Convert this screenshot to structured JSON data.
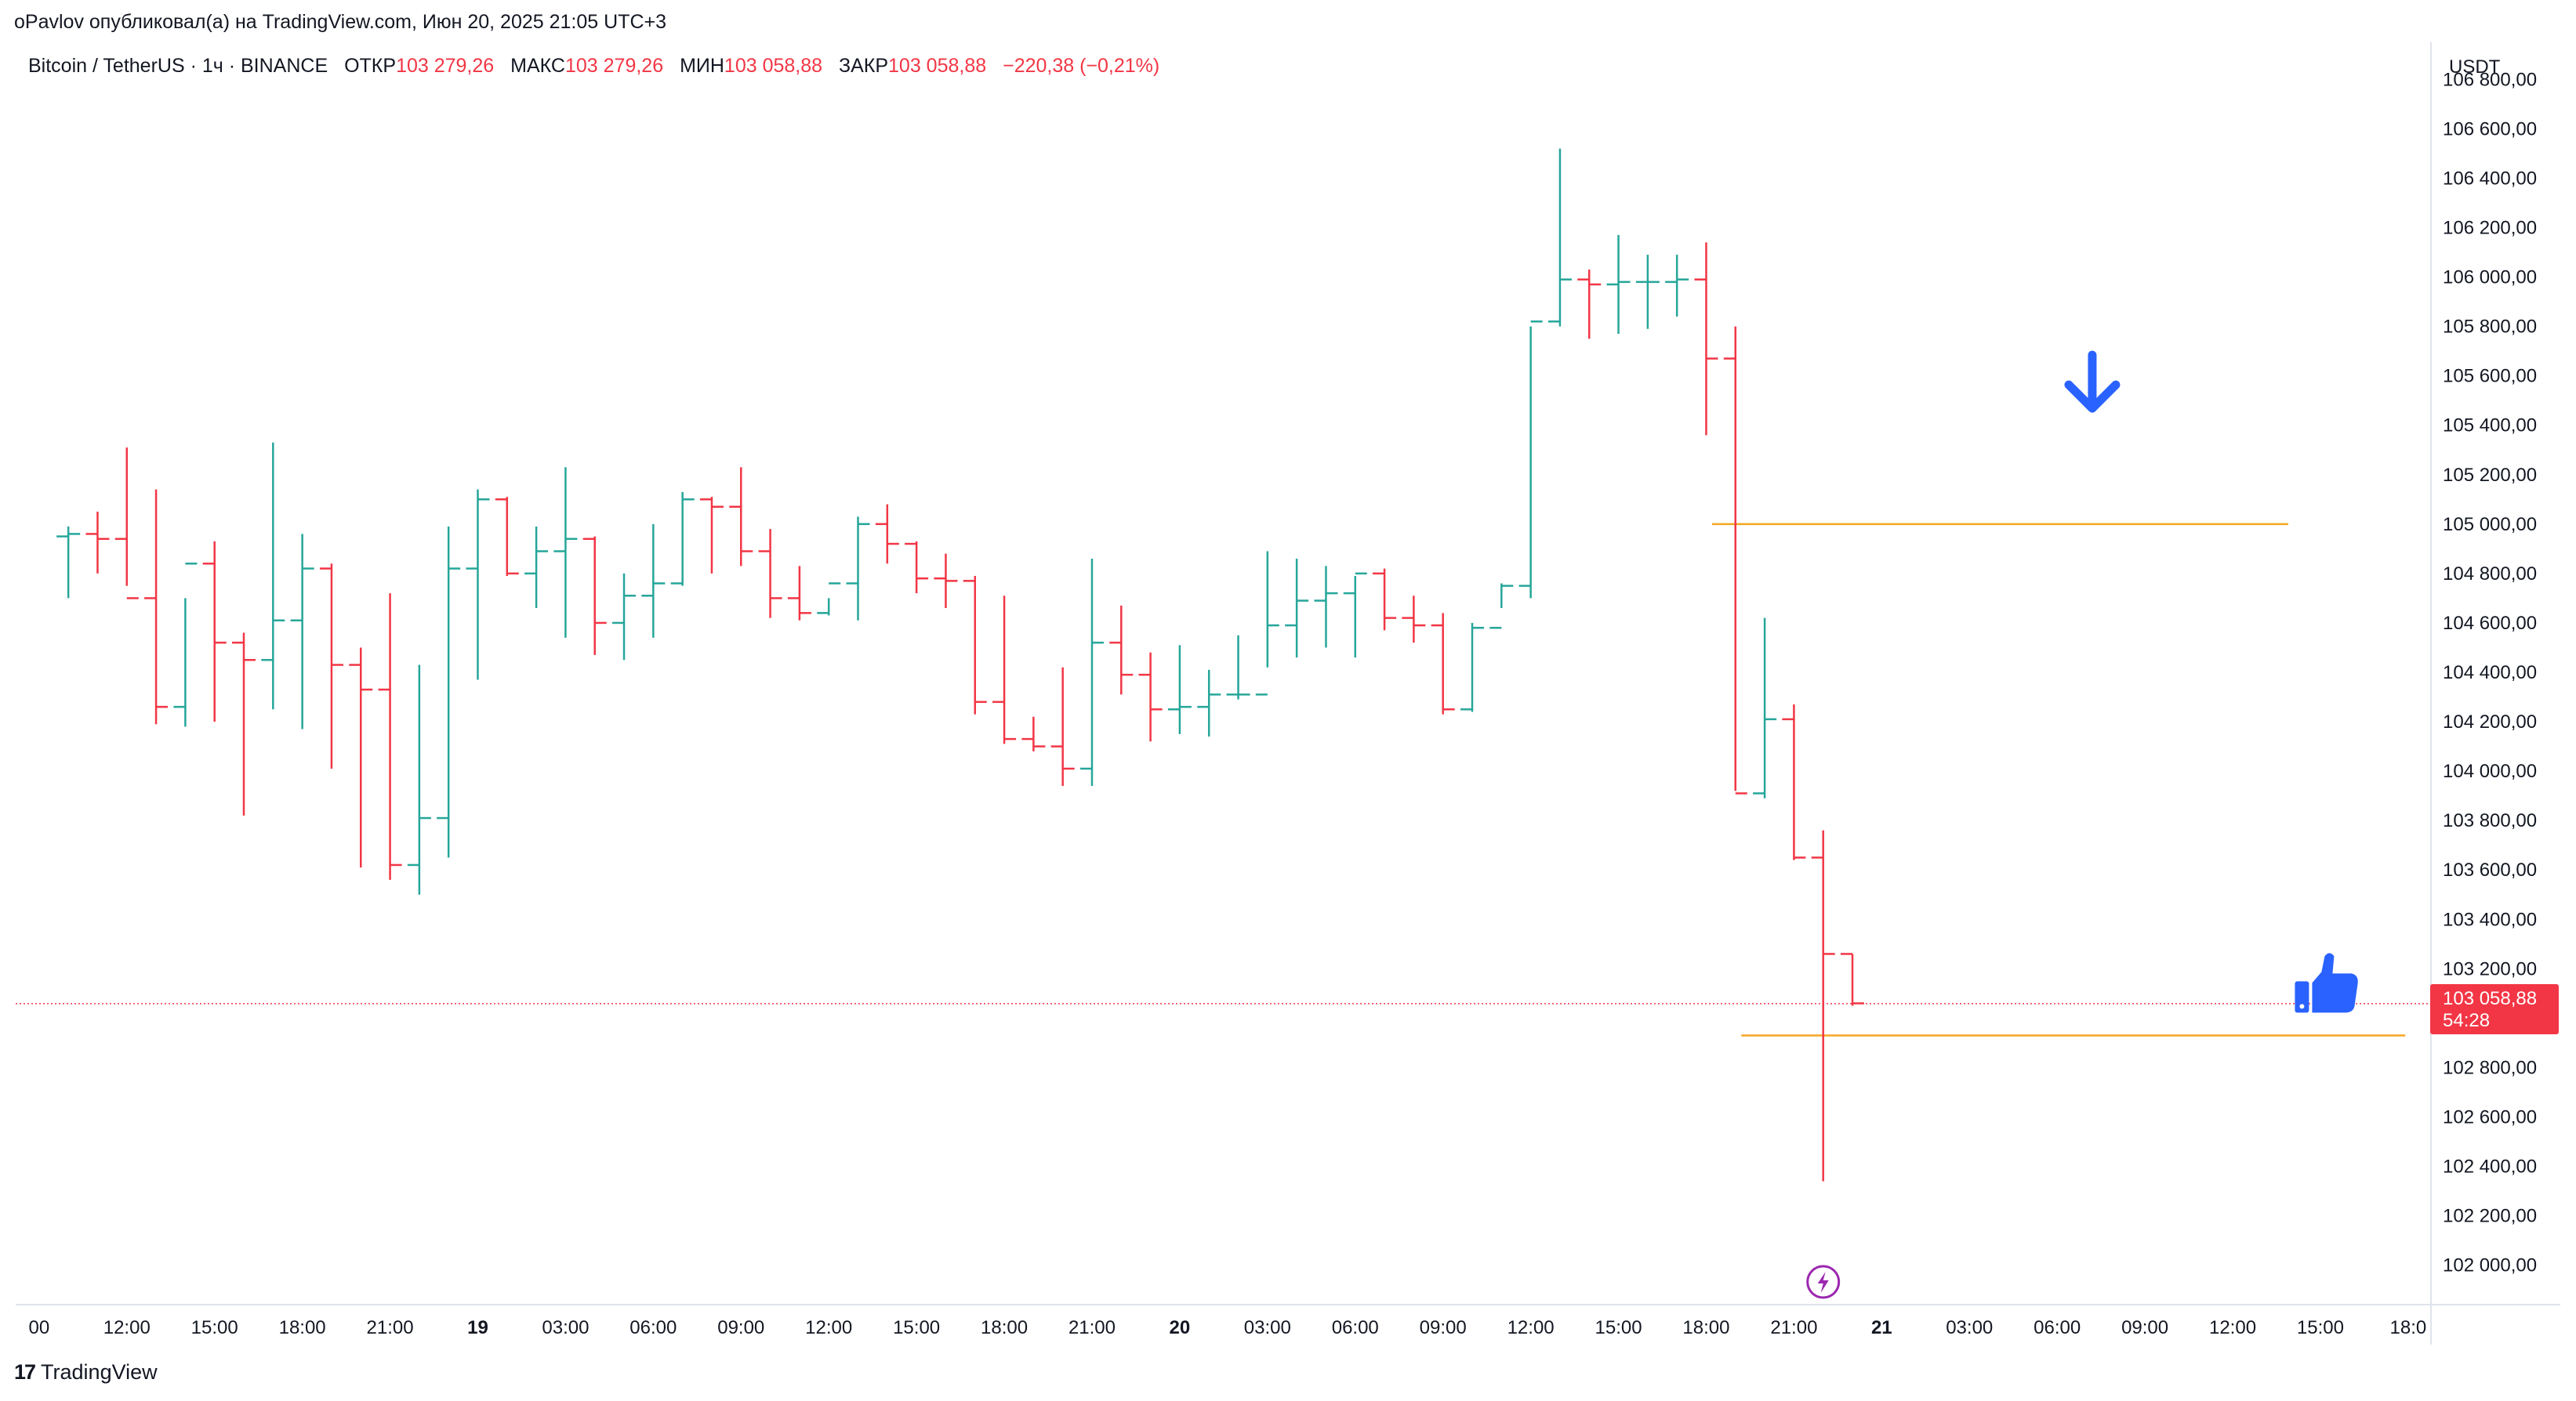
{
  "header": {
    "published_by": "oPavlov опубликовал(а) на TradingView.com, Июн 20, 2025 21:05 UTC+3"
  },
  "legend": {
    "symbol": "Bitcoin / TetherUS · 1ч · BINANCE",
    "open_label": "ОТКР",
    "open_value": "103 279,26",
    "high_label": "МАКС",
    "high_value": "103 279,26",
    "low_label": "МИН",
    "low_value": "103 058,88",
    "close_label": "ЗАКР",
    "close_value": "103 058,88",
    "change": "−220,38 (−0,21%)"
  },
  "axis": {
    "currency": "USDT"
  },
  "price_tag": {
    "price": "103 058,88",
    "countdown": "54:28",
    "color": "#f23645"
  },
  "footer": {
    "brand_mark": "17",
    "brand_name": "TradingView"
  },
  "colors": {
    "up": "#26a69a",
    "down": "#f23645",
    "level_line": "#f5a623",
    "arrow": "#2962ff",
    "thumb": "#2962ff",
    "flash": "#9c27b0"
  },
  "chart_data": {
    "type": "ohlc",
    "title": "Bitcoin / TetherUS · 1ч · BINANCE",
    "interval": "1h",
    "ylim": [
      101850,
      106950
    ],
    "y_ticks": [
      102000,
      102200,
      102400,
      102600,
      102800,
      103200,
      103400,
      103600,
      103800,
      104000,
      104200,
      104400,
      104600,
      104800,
      105000,
      105200,
      105400,
      105600,
      105800,
      106000,
      106200,
      106400,
      106600,
      106800
    ],
    "y_tick_labels": [
      "102 000,00",
      "102 200,00",
      "102 400,00",
      "102 600,00",
      "102 800,00",
      "103 200,00",
      "103 400,00",
      "103 600,00",
      "103 800,00",
      "104 000,00",
      "104 200,00",
      "104 400,00",
      "104 600,00",
      "104 800,00",
      "105 000,00",
      "105 200,00",
      "105 400,00",
      "105 600,00",
      "105 800,00",
      "106 000,00",
      "106 200,00",
      "106 400,00",
      "106 600,00",
      "106 800,00"
    ],
    "x_ticks": [
      {
        "i": -1,
        "label": "00",
        "bold": false
      },
      {
        "i": 2,
        "label": "12:00",
        "bold": false
      },
      {
        "i": 5,
        "label": "15:00",
        "bold": false
      },
      {
        "i": 8,
        "label": "18:00",
        "bold": false
      },
      {
        "i": 11,
        "label": "21:00",
        "bold": false
      },
      {
        "i": 14,
        "label": "19",
        "bold": true
      },
      {
        "i": 17,
        "label": "03:00",
        "bold": false
      },
      {
        "i": 20,
        "label": "06:00",
        "bold": false
      },
      {
        "i": 23,
        "label": "09:00",
        "bold": false
      },
      {
        "i": 26,
        "label": "12:00",
        "bold": false
      },
      {
        "i": 29,
        "label": "15:00",
        "bold": false
      },
      {
        "i": 32,
        "label": "18:00",
        "bold": false
      },
      {
        "i": 35,
        "label": "21:00",
        "bold": false
      },
      {
        "i": 38,
        "label": "20",
        "bold": true
      },
      {
        "i": 41,
        "label": "03:00",
        "bold": false
      },
      {
        "i": 44,
        "label": "06:00",
        "bold": false
      },
      {
        "i": 47,
        "label": "09:00",
        "bold": false
      },
      {
        "i": 50,
        "label": "12:00",
        "bold": false
      },
      {
        "i": 53,
        "label": "15:00",
        "bold": false
      },
      {
        "i": 56,
        "label": "18:00",
        "bold": false
      },
      {
        "i": 59,
        "label": "21:00",
        "bold": false
      },
      {
        "i": 62,
        "label": "21",
        "bold": true
      },
      {
        "i": 65,
        "label": "03:00",
        "bold": false
      },
      {
        "i": 68,
        "label": "06:00",
        "bold": false
      },
      {
        "i": 71,
        "label": "09:00",
        "bold": false
      },
      {
        "i": 74,
        "label": "12:00",
        "bold": false
      },
      {
        "i": 77,
        "label": "15:00",
        "bold": false
      },
      {
        "i": 80,
        "label": "18:0",
        "bold": false
      }
    ],
    "x_range": [
      -1.8,
      80.7
    ],
    "bars": [
      [
        104950,
        104990,
        104700,
        104960
      ],
      [
        104960,
        105050,
        104800,
        104940
      ],
      [
        104940,
        105310,
        104750,
        104700
      ],
      [
        104700,
        105140,
        104190,
        104260
      ],
      [
        104260,
        104700,
        104180,
        104840
      ],
      [
        104840,
        104930,
        104200,
        104520
      ],
      [
        104520,
        104560,
        103820,
        104450
      ],
      [
        104450,
        105330,
        104250,
        104610
      ],
      [
        104610,
        104960,
        104170,
        104820
      ],
      [
        104820,
        104840,
        104010,
        104430
      ],
      [
        104430,
        104500,
        103610,
        104330
      ],
      [
        104330,
        104720,
        103560,
        103620
      ],
      [
        103620,
        104430,
        103500,
        103810
      ],
      [
        103810,
        104990,
        103650,
        104820
      ],
      [
        104820,
        105140,
        104370,
        105100
      ],
      [
        105100,
        105110,
        104790,
        104800
      ],
      [
        104800,
        104990,
        104660,
        104890
      ],
      [
        104890,
        105230,
        104540,
        104940
      ],
      [
        104940,
        104950,
        104470,
        104600
      ],
      [
        104600,
        104800,
        104450,
        104710
      ],
      [
        104710,
        105000,
        104540,
        104760
      ],
      [
        104760,
        105130,
        104750,
        105100
      ],
      [
        105100,
        105110,
        104800,
        105070
      ],
      [
        105070,
        105230,
        104830,
        104890
      ],
      [
        104890,
        104980,
        104620,
        104700
      ],
      [
        104700,
        104830,
        104610,
        104640
      ],
      [
        104640,
        104700,
        104630,
        104760
      ],
      [
        104760,
        105030,
        104610,
        105000
      ],
      [
        105000,
        105080,
        104840,
        104920
      ],
      [
        104920,
        104930,
        104720,
        104780
      ],
      [
        104780,
        104880,
        104660,
        104770
      ],
      [
        104770,
        104790,
        104230,
        104280
      ],
      [
        104280,
        104710,
        104110,
        104130
      ],
      [
        104130,
        104220,
        104080,
        104100
      ],
      [
        104100,
        104420,
        103940,
        104010
      ],
      [
        104010,
        104860,
        103940,
        104520
      ],
      [
        104520,
        104670,
        104310,
        104390
      ],
      [
        104390,
        104480,
        104120,
        104250
      ],
      [
        104250,
        104510,
        104150,
        104260
      ],
      [
        104260,
        104410,
        104140,
        104310
      ],
      [
        104310,
        104550,
        104290,
        104310
      ],
      [
        104310,
        104890,
        104420,
        104590
      ],
      [
        104590,
        104860,
        104460,
        104690
      ],
      [
        104690,
        104830,
        104500,
        104720
      ],
      [
        104720,
        104790,
        104460,
        104800
      ],
      [
        104800,
        104820,
        104570,
        104620
      ],
      [
        104620,
        104710,
        104520,
        104590
      ],
      [
        104590,
        104640,
        104230,
        104250
      ],
      [
        104250,
        104600,
        104240,
        104580
      ],
      [
        104580,
        104760,
        104660,
        104750
      ],
      [
        104750,
        105800,
        104700,
        105820
      ],
      [
        105820,
        106520,
        105800,
        105990
      ],
      [
        105990,
        106030,
        105750,
        105970
      ],
      [
        105970,
        106170,
        105770,
        105980
      ],
      [
        105980,
        106090,
        105790,
        105980
      ],
      [
        105980,
        106090,
        105840,
        105990
      ],
      [
        105990,
        106140,
        105360,
        105670
      ],
      [
        105670,
        105800,
        103920,
        103910
      ],
      [
        103910,
        104620,
        103890,
        104210
      ],
      [
        104210,
        104270,
        103640,
        103650
      ],
      [
        103650,
        103760,
        102340,
        103260
      ],
      [
        103260,
        103260,
        103050,
        103060
      ]
    ],
    "last_price": 103058.88,
    "horizontal_levels": [
      {
        "price": 105000,
        "i_start": 56.2,
        "i_end": 75.9
      },
      {
        "price": 102930,
        "i_start": 57.2,
        "i_end": 79.9
      }
    ],
    "annotations": [
      {
        "type": "arrow-down",
        "i": 69.2,
        "price": 105570
      },
      {
        "type": "thumbs-up",
        "i": 77.2,
        "price": 103130
      },
      {
        "type": "flash-marker",
        "i": 60.0,
        "price": 101900
      }
    ]
  }
}
